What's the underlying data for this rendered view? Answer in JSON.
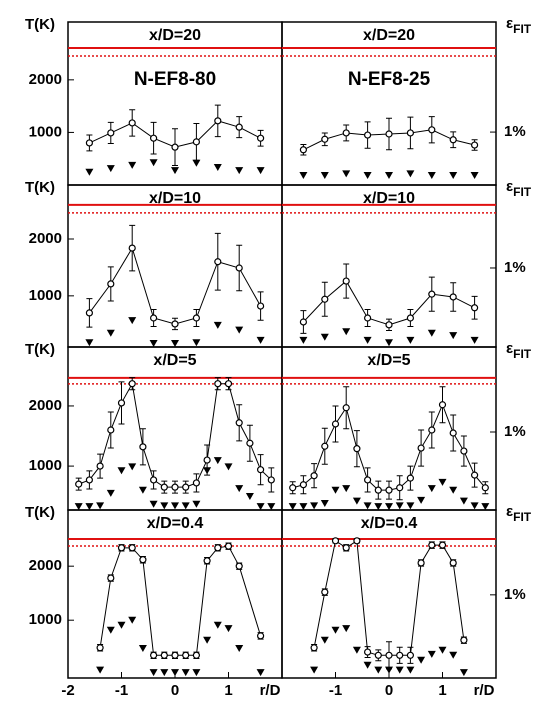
{
  "chart_data": [
    {
      "type": "errorline",
      "title": "x/D=20",
      "subtitle": "N-EF8-80",
      "ylabel": "T(K)",
      "x": [
        -1.6,
        -1.2,
        -0.8,
        -0.4,
        0,
        0.4,
        0.8,
        1.2,
        1.6
      ],
      "values": [
        800,
        990,
        1180,
        890,
        720,
        820,
        1220,
        1100,
        890
      ],
      "errors": [
        150,
        200,
        250,
        300,
        350,
        350,
        300,
        200,
        150
      ],
      "y2_values": [
        0.25,
        0.32,
        0.38,
        0.43,
        0.28,
        0.42,
        0.34,
        0.28,
        0.28
      ],
      "xlim": [
        -2,
        2
      ],
      "ylim": [
        0,
        3100
      ],
      "yticks": [
        1000,
        2000
      ],
      "y2lim": [
        0,
        3.08
      ],
      "ref_lines": [
        {
          "value": 2605,
          "style": "solid"
        },
        {
          "value": 2453,
          "style": "dotted"
        }
      ],
      "color": "#000000",
      "ref_color": "#e01010"
    },
    {
      "type": "errorline",
      "title": "x/D=20",
      "subtitle": "N-EF8-25",
      "y2label": "ε",
      "y2label_sub": "FIT",
      "x": [
        -1.6,
        -1.2,
        -0.8,
        -0.4,
        0,
        0.4,
        0.8,
        1.2,
        1.6
      ],
      "values": [
        670,
        870,
        990,
        950,
        970,
        990,
        1050,
        860,
        760
      ],
      "errors": [
        100,
        120,
        150,
        250,
        300,
        300,
        250,
        150,
        100
      ],
      "y2_values": [
        0.19,
        0.19,
        0.22,
        0.19,
        0.19,
        0.22,
        0.19,
        0.19,
        0.19
      ],
      "xlim": [
        -2,
        2
      ],
      "ylim": [
        0,
        3100
      ],
      "y2lim": [
        0,
        3.08
      ],
      "y2ticks": [
        {
          "value": 1,
          "label": "1%"
        }
      ],
      "ref_lines": [
        {
          "value": 2605,
          "style": "solid"
        },
        {
          "value": 2453,
          "style": "dotted"
        }
      ],
      "color": "#000000",
      "ref_color": "#e01010"
    },
    {
      "type": "errorline",
      "title": "x/D=10",
      "ylabel": "T(K)",
      "x": [
        -1.6,
        -1.2,
        -0.8,
        -0.4,
        0,
        0.4,
        0.8,
        1.2,
        1.6
      ],
      "values": [
        700,
        1210,
        1840,
        610,
        505,
        610,
        1600,
        1490,
        820
      ],
      "errors": [
        250,
        300,
        400,
        150,
        100,
        150,
        500,
        400,
        250
      ],
      "y2_values": [
        0.06,
        0.18,
        0.34,
        0.05,
        0.05,
        0.06,
        0.28,
        0.22,
        0.09
      ],
      "xlim": [
        -2,
        2
      ],
      "ylim": [
        100,
        2950
      ],
      "yticks": [
        1000,
        2000
      ],
      "y2lim": [
        0,
        2.05
      ],
      "ref_lines": [
        {
          "value": 2600,
          "style": "solid"
        },
        {
          "value": 2460,
          "style": "dotted"
        }
      ],
      "color": "#000000",
      "ref_color": "#e01010"
    },
    {
      "type": "errorline",
      "title": "x/D=10",
      "y2label": "ε",
      "y2label_sub": "FIT",
      "x": [
        -1.6,
        -1.2,
        -0.8,
        -0.4,
        0,
        0.4,
        0.8,
        1.2,
        1.6
      ],
      "values": [
        540,
        940,
        1260,
        610,
        490,
        610,
        1030,
        980,
        790
      ],
      "errors": [
        200,
        300,
        300,
        150,
        100,
        150,
        300,
        250,
        200
      ],
      "y2_values": [
        0.09,
        0.13,
        0.2,
        0.09,
        0.06,
        0.09,
        0.18,
        0.15,
        0.09
      ],
      "xlim": [
        -2,
        2
      ],
      "ylim": [
        100,
        2950
      ],
      "y2lim": [
        0,
        2.05
      ],
      "y2ticks": [
        {
          "value": 1,
          "label": "1%"
        }
      ],
      "ref_lines": [
        {
          "value": 2600,
          "style": "solid"
        },
        {
          "value": 2460,
          "style": "dotted"
        }
      ],
      "color": "#000000",
      "ref_color": "#e01010"
    },
    {
      "type": "errorline",
      "title": "x/D=5",
      "ylabel": "T(K)",
      "x": [
        -1.8,
        -1.6,
        -1.4,
        -1.2,
        -1,
        -0.8,
        -0.6,
        -0.4,
        -0.2,
        0,
        0.2,
        0.4,
        0.6,
        0.8,
        1,
        1.2,
        1.4,
        1.6,
        1.8
      ],
      "values": [
        700,
        770,
        1000,
        1600,
        2050,
        2370,
        1320,
        770,
        650,
        650,
        650,
        720,
        1100,
        2370,
        2370,
        1720,
        1380,
        940,
        770
      ],
      "errors": [
        100,
        150,
        200,
        300,
        350,
        100,
        300,
        150,
        100,
        100,
        100,
        150,
        250,
        100,
        100,
        300,
        300,
        250,
        200
      ],
      "y2_values": [
        0.05,
        0.05,
        0.06,
        0.22,
        0.51,
        0.56,
        0.26,
        0.08,
        0.06,
        0.06,
        0.06,
        0.08,
        0.51,
        0.64,
        0.56,
        0.28,
        0.18,
        0.05,
        0.05
      ],
      "xlim": [
        -2,
        2
      ],
      "ylim": [
        270,
        2980
      ],
      "yticks": [
        1000,
        2000
      ],
      "y2lim": [
        0,
        2.09
      ],
      "ref_lines": [
        {
          "value": 2466,
          "style": "solid"
        },
        {
          "value": 2366,
          "style": "dotted"
        }
      ],
      "color": "#000000",
      "ref_color": "#e01010"
    },
    {
      "type": "errorline",
      "title": "x/D=5",
      "y2label": "ε",
      "y2label_sub": "FIT",
      "x": [
        -1.8,
        -1.6,
        -1.4,
        -1.2,
        -1,
        -0.8,
        -0.6,
        -0.4,
        -0.2,
        0,
        0.2,
        0.4,
        0.6,
        0.8,
        1,
        1.2,
        1.4,
        1.6,
        1.8
      ],
      "values": [
        640,
        690,
        840,
        1330,
        1700,
        1970,
        1290,
        770,
        600,
        600,
        640,
        800,
        1300,
        1600,
        2020,
        1550,
        1250,
        850,
        640
      ],
      "errors": [
        100,
        150,
        200,
        300,
        300,
        350,
        300,
        200,
        150,
        150,
        200,
        200,
        300,
        300,
        300,
        300,
        250,
        200,
        100
      ],
      "y2_values": [
        0.05,
        0.05,
        0.06,
        0.09,
        0.26,
        0.28,
        0.12,
        0.06,
        0.05,
        0.05,
        0.06,
        0.06,
        0.13,
        0.28,
        0.36,
        0.26,
        0.12,
        0.06,
        0.05
      ],
      "xlim": [
        -2,
        2
      ],
      "ylim": [
        270,
        2980
      ],
      "y2lim": [
        0,
        2.09
      ],
      "y2ticks": [
        {
          "value": 1,
          "label": "1%"
        }
      ],
      "ref_lines": [
        {
          "value": 2466,
          "style": "solid"
        },
        {
          "value": 2366,
          "style": "dotted"
        }
      ],
      "color": "#000000",
      "ref_color": "#e01010"
    },
    {
      "type": "errorline",
      "title": "x/D=0.4",
      "ylabel": "T(K)",
      "xlabel": "r/D",
      "x": [
        -1.4,
        -1.2,
        -1,
        -0.8,
        -0.6,
        -0.4,
        -0.2,
        0,
        0.2,
        0.4,
        0.6,
        0.8,
        1,
        1.2,
        1.6
      ],
      "values": [
        490,
        1780,
        2340,
        2340,
        2120,
        350,
        350,
        350,
        350,
        350,
        2100,
        2340,
        2370,
        2000,
        710
      ],
      "errors": [
        60,
        60,
        60,
        60,
        60,
        60,
        60,
        60,
        60,
        60,
        60,
        60,
        60,
        60,
        60
      ],
      "y2_values": [
        0.1,
        0.58,
        0.64,
        0.7,
        0.36,
        0.07,
        0.07,
        0.07,
        0.07,
        0.07,
        0.46,
        0.64,
        0.6,
        0.36,
        0.07
      ],
      "xlim": [
        -2,
        2
      ],
      "xticks": [
        -2,
        -1,
        0,
        1
      ],
      "ylim": [
        -70,
        3040
      ],
      "yticks": [
        1000,
        2000
      ],
      "y2lim": [
        0,
        2.02
      ],
      "ref_lines": [
        {
          "value": 2504,
          "style": "solid"
        },
        {
          "value": 2374,
          "style": "dotted"
        }
      ],
      "color": "#000000",
      "ref_color": "#e01010"
    },
    {
      "type": "errorline",
      "title": "x/D=0.4",
      "y2label": "ε",
      "y2label_sub": "FIT",
      "xlabel": "r/D",
      "x": [
        -1.4,
        -1.2,
        -1,
        -0.8,
        -0.6,
        -0.4,
        -0.2,
        0,
        0.2,
        0.4,
        0.6,
        0.8,
        1,
        1.2,
        1.4
      ],
      "values": [
        490,
        1520,
        2470,
        2340,
        2470,
        410,
        350,
        350,
        350,
        350,
        2060,
        2390,
        2390,
        2060,
        630
      ],
      "errors": [
        60,
        60,
        40,
        60,
        40,
        100,
        100,
        250,
        150,
        150,
        60,
        60,
        60,
        60,
        60
      ],
      "y2_values": [
        0.1,
        0.46,
        0.58,
        0.6,
        0.34,
        0.16,
        0.1,
        0.1,
        0.1,
        0.1,
        0.22,
        0.29,
        0.34,
        0.28,
        0.07
      ],
      "xlim": [
        -2,
        2
      ],
      "xticks": [
        -1,
        0,
        1
      ],
      "ylim": [
        -70,
        3040
      ],
      "y2lim": [
        0,
        2.02
      ],
      "y2ticks": [
        {
          "value": 1,
          "label": "1%"
        }
      ],
      "ref_lines": [
        {
          "value": 2504,
          "style": "solid"
        },
        {
          "value": 2374,
          "style": "dotted"
        }
      ],
      "color": "#000000",
      "ref_color": "#e01010"
    }
  ]
}
